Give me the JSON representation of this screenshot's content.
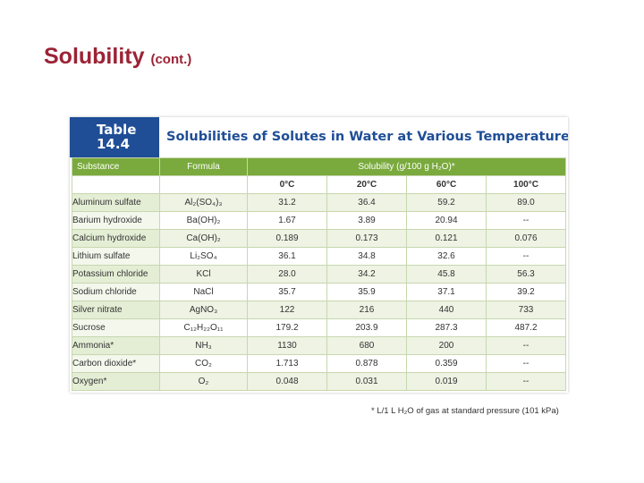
{
  "slide": {
    "title": "Solubility",
    "title_suffix": "(cont.)"
  },
  "table": {
    "label_line1": "Table",
    "label_line2": "14.4",
    "caption": "Solubilities of Solutes in Water at Various Temperatures",
    "col_substance": "Substance",
    "col_formula": "Formula",
    "col_solubility": "Solubility (g/100 g H₂O)*",
    "temps": [
      "0°C",
      "20°C",
      "60°C",
      "100°C"
    ],
    "rows": [
      {
        "substance": "Aluminum sulfate",
        "formula": "Al₂(SO₄)₃",
        "values": [
          "31.2",
          "36.4",
          "59.2",
          "89.0"
        ]
      },
      {
        "substance": "Barium hydroxide",
        "formula": "Ba(OH)₂",
        "values": [
          "1.67",
          "3.89",
          "20.94",
          "--"
        ]
      },
      {
        "substance": "Calcium hydroxide",
        "formula": "Ca(OH)₂",
        "values": [
          "0.189",
          "0.173",
          "0.121",
          "0.076"
        ]
      },
      {
        "substance": "Lithium sulfate",
        "formula": "Li₂SO₄",
        "values": [
          "36.1",
          "34.8",
          "32.6",
          "--"
        ]
      },
      {
        "substance": "Potassium chloride",
        "formula": "KCl",
        "values": [
          "28.0",
          "34.2",
          "45.8",
          "56.3"
        ]
      },
      {
        "substance": "Sodium chloride",
        "formula": "NaCl",
        "values": [
          "35.7",
          "35.9",
          "37.1",
          "39.2"
        ]
      },
      {
        "substance": "Silver nitrate",
        "formula": "AgNO₃",
        "values": [
          "122",
          "216",
          "440",
          "733"
        ]
      },
      {
        "substance": "Sucrose",
        "formula": "C₁₂H₂₂O₁₁",
        "values": [
          "179.2",
          "203.9",
          "287.3",
          "487.2"
        ]
      },
      {
        "substance": "Ammonia*",
        "formula": "NH₃",
        "values": [
          "1130",
          "680",
          "200",
          "--"
        ]
      },
      {
        "substance": "Carbon dioxide*",
        "formula": "CO₂",
        "values": [
          "1.713",
          "0.878",
          "0.359",
          "--"
        ]
      },
      {
        "substance": "Oxygen*",
        "formula": "O₂",
        "values": [
          "0.048",
          "0.031",
          "0.019",
          "--"
        ]
      }
    ],
    "footnote": "* L/1 L H₂O of gas at standard pressure (101 kPa)"
  },
  "colors": {
    "title": "#9b2335",
    "table_label_bg": "#1f4e96",
    "header_green": "#7aaa3d"
  }
}
